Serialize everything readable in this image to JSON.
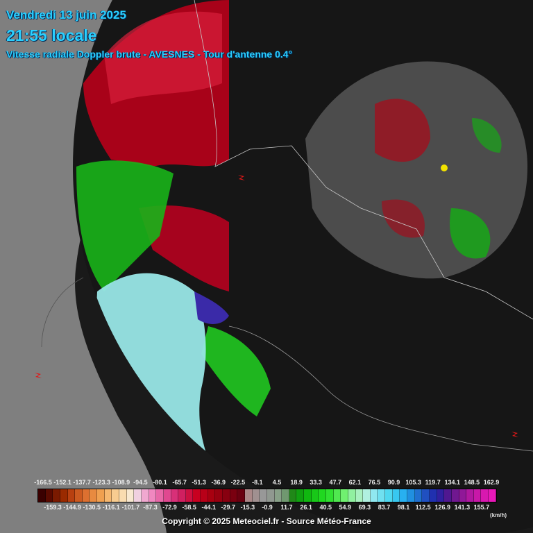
{
  "header": {
    "date": "Vendredi 13 juin 2025",
    "time": "21:55 locale",
    "subtitle": "Vitesse radiale Doppler brute - AVESNES - Tour d'antenne 0.4°"
  },
  "legend": {
    "top_labels": [
      "-166.5",
      "-152.1",
      "-137.7",
      "-123.3",
      "-108.9",
      "-94.5",
      "-80.1",
      "-65.7",
      "-51.3",
      "-36.9",
      "-22.5",
      "-8.1",
      "4.5",
      "18.9",
      "33.3",
      "47.7",
      "62.1",
      "76.5",
      "90.9",
      "105.3",
      "119.7",
      "134.1",
      "148.5",
      "162.9"
    ],
    "bottom_labels": [
      "-159.3",
      "-144.9",
      "-130.5",
      "-116.1",
      "-101.7",
      "-87.3",
      "-72.9",
      "-58.5",
      "-44.1",
      "-29.7",
      "-15.3",
      "-0.9",
      "11.7",
      "26.1",
      "40.5",
      "54.9",
      "69.3",
      "83.7",
      "98.1",
      "112.5",
      "126.9",
      "141.3",
      "155.7"
    ],
    "colors": [
      "#3a0000",
      "#5a0a00",
      "#7a1a00",
      "#9a2a00",
      "#b84010",
      "#cc5a20",
      "#dd7030",
      "#e88a40",
      "#f0a050",
      "#f6b870",
      "#f8cc90",
      "#fadcb0",
      "#f8e8d0",
      "#f0d0e0",
      "#f0a8d0",
      "#f088c0",
      "#e868a8",
      "#e04890",
      "#d83078",
      "#d02060",
      "#cc1040",
      "#c80020",
      "#b80018",
      "#a80010",
      "#980010",
      "#880010",
      "#7a0010",
      "#6a0010",
      "#aa8888",
      "#a09090",
      "#989898",
      "#909890",
      "#88a088",
      "#709870",
      "#208818",
      "#10a010",
      "#10b810",
      "#18c818",
      "#20d820",
      "#30e030",
      "#50e850",
      "#70f070",
      "#90f0a0",
      "#a8f0c0",
      "#b0f0e0",
      "#90e8f0",
      "#70e0f0",
      "#50d8f0",
      "#38c8f0",
      "#28b0f0",
      "#2090e0",
      "#2070d0",
      "#2050c0",
      "#2030b0",
      "#3020a0",
      "#501890",
      "#701890",
      "#901898",
      "#b018a0",
      "#c818a8",
      "#d818b0",
      "#e818b8"
    ],
    "unit": "(km/h)"
  },
  "copyright": "Copyright © 2025  Meteociel.fr  -  Source Météo-France",
  "colors": {
    "header_text": "#2ad0ff",
    "background_dark": "#1a1a1a",
    "background_gray": "#7f7f7f"
  },
  "map": {
    "radar_site_icon": "radar-marker-yellow",
    "warning_icons": [
      "red-lightning-marker",
      "red-lightning-marker",
      "red-lightning-marker"
    ]
  }
}
